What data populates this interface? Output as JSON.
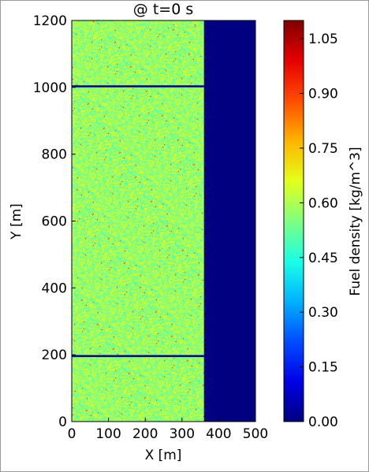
{
  "chart_data": {
    "type": "heatmap",
    "title": "@ t=0 s",
    "xlabel": "X [m]",
    "ylabel": "Y [m]",
    "xlim": [
      0,
      500
    ],
    "ylim": [
      0,
      1200
    ],
    "xticks": [
      0,
      100,
      200,
      300,
      400,
      500
    ],
    "yticks": [
      0,
      200,
      400,
      600,
      800,
      1000,
      1200
    ],
    "xtick_labels": [
      "0",
      "100",
      "200",
      "300",
      "400",
      "500"
    ],
    "ytick_labels": [
      "0",
      "200",
      "400",
      "600",
      "800",
      "1000",
      "1200"
    ],
    "colormap": "jet",
    "colorbar": {
      "label": "Fuel density [kg/m^3]",
      "range": [
        0.0,
        1.1
      ],
      "ticks": [
        0.0,
        0.15,
        0.3,
        0.45,
        0.6,
        0.75,
        0.9,
        1.05
      ],
      "tick_labels": [
        "0.00",
        "0.15",
        "0.30",
        "0.45",
        "0.60",
        "0.75",
        "0.90",
        "1.05"
      ]
    },
    "regions": [
      {
        "name": "fuel bed",
        "x": [
          0,
          360
        ],
        "y": [
          0,
          1200
        ],
        "value_mean": 0.58,
        "value_spread": 0.12
      },
      {
        "name": "no fuel",
        "x": [
          360,
          500
        ],
        "y": [
          0,
          1200
        ],
        "value": 0.0
      },
      {
        "name": "firebreak",
        "x": [
          0,
          360
        ],
        "y": [
          1000,
          1006
        ],
        "value": 0.02
      },
      {
        "name": "firebreak",
        "x": [
          0,
          360
        ],
        "y": [
          193,
          199
        ],
        "value": 0.02
      }
    ],
    "grid": false,
    "legend": "none"
  }
}
